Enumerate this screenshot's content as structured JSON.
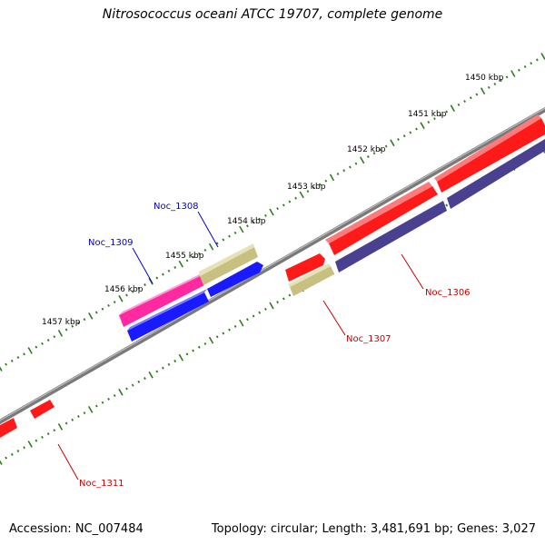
{
  "title": "Nitrosococcus oceani ATCC 19707, complete genome",
  "footer": {
    "accession": "Accession: NC_007484",
    "topology": "Topology: circular; Length: 3,481,691 bp; Genes: 3,027"
  },
  "colors": {
    "backbone": "#7a7a7a",
    "tick_dots": "#2d7d1e",
    "gene_red": "#ff1a1a",
    "gene_pink": "#ff2aa0",
    "gene_tan": "#c8c080",
    "gene_blue": "#1a1aff",
    "gene_navy": "#4a4090",
    "label_blue": "#0000cc",
    "label_red": "#cc0000"
  },
  "scale_labels": [
    "1450 kbp",
    "1451 kbp",
    "1452 kbp",
    "1453 kbp",
    "1454 kbp",
    "1455 kbp",
    "1456 kbp",
    "1457 kbp"
  ],
  "gene_labels": [
    "Noc_1308",
    "Noc_1309",
    "Noc_1306",
    "Noc_1307",
    "Noc_1311"
  ]
}
